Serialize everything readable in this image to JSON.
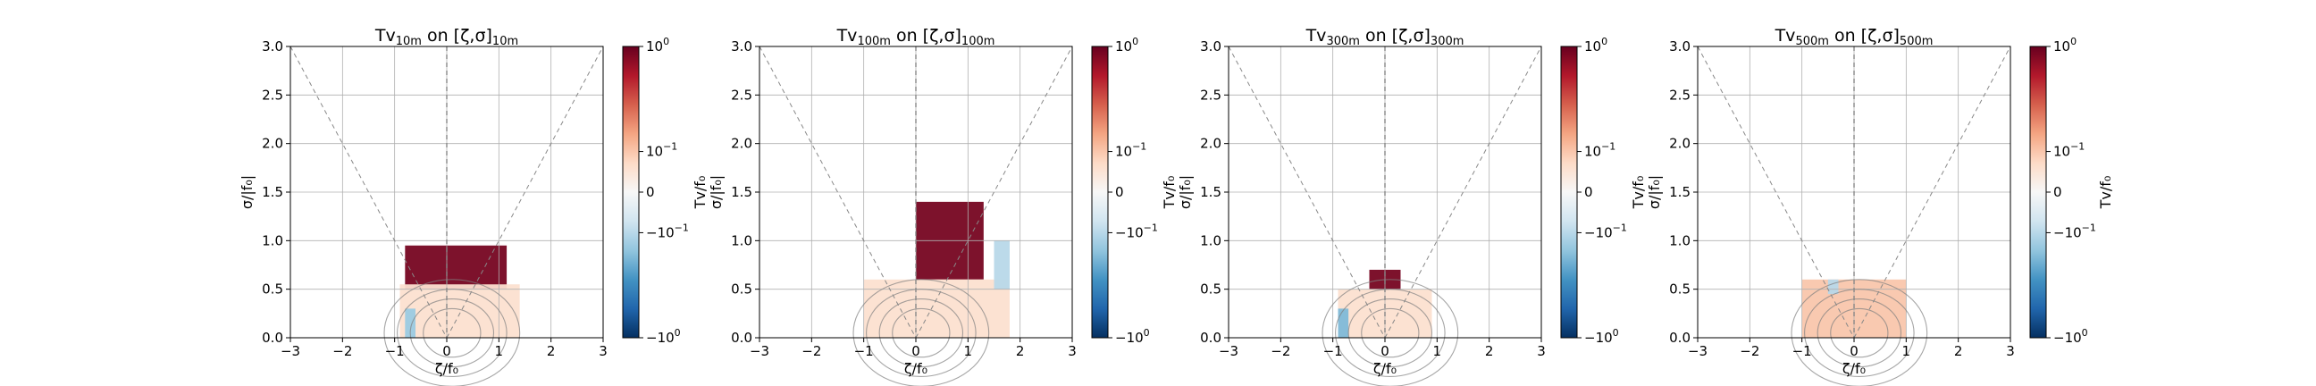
{
  "figure": {
    "panels": [
      {
        "title_main": "Tv",
        "title_sub": "10m",
        "title_mid": " on [ζ,σ]",
        "title_sub2": "10m",
        "xlabel": "ζ/f₀",
        "ylabel_lines": [
          "σ/|f₀|"
        ]
      },
      {
        "title_main": "Tv",
        "title_sub": "100m",
        "title_mid": " on [ζ,σ]",
        "title_sub2": "100m",
        "xlabel": "ζ/f₀",
        "ylabel_lines": [
          "Tv/f₀",
          "σ/|f₀|"
        ]
      },
      {
        "title_main": "Tv",
        "title_sub": "300m",
        "title_mid": " on [ζ,σ]",
        "title_sub2": "300m",
        "xlabel": "ζ/f₀",
        "ylabel_lines": [
          "Tv/f₀",
          "σ/|f₀|"
        ]
      },
      {
        "title_main": "Tv",
        "title_sub": "500m",
        "title_mid": " on [ζ,σ]",
        "title_sub2": "500m",
        "xlabel": "ζ/f₀",
        "ylabel_lines": [
          "Tv/f₀",
          "σ/|f₀|"
        ]
      }
    ],
    "colorbar": {
      "ticks": [
        {
          "base": "10",
          "exp": "0",
          "sign": "",
          "value": 1
        },
        {
          "base": "10",
          "exp": "−1",
          "sign": "",
          "value": 0.1
        },
        {
          "base": "0",
          "exp": "",
          "sign": "",
          "value": 0
        },
        {
          "base": "10",
          "exp": "−1",
          "sign": "−",
          "value": -0.1
        },
        {
          "base": "10",
          "exp": "0",
          "sign": "−",
          "value": -1
        }
      ],
      "last_label": "Tv/f₀",
      "colors": [
        "#053061",
        "#2166ac",
        "#4393c3",
        "#92c5de",
        "#d1e5f0",
        "#f7f7f7",
        "#fddbc7",
        "#f4a582",
        "#d6604d",
        "#b2182b",
        "#67001f"
      ]
    }
  },
  "chart_data": [
    {
      "type": "heatmap",
      "title": "Tv10m on [ζ,σ]10m",
      "xlabel": "ζ/f₀",
      "ylabel": "σ/|f₀|",
      "xlim": [
        -3,
        3
      ],
      "ylim": [
        0,
        3
      ],
      "xticks": [
        "−3",
        "−2",
        "−1",
        "0",
        "1",
        "2",
        "3"
      ],
      "yticks": [
        "0.0",
        "0.5",
        "1.0",
        "1.5",
        "2.0",
        "2.5",
        "3.0"
      ],
      "grid": true,
      "colorscale": "symlog RdBu_r",
      "clim": [
        -1,
        1
      ],
      "reference_lines": [
        "σ = |ζ|",
        "ζ = 0"
      ],
      "regions": [
        {
          "zeta": [
            -0.8,
            1.15
          ],
          "sigma": [
            0.5,
            0.95
          ],
          "value": 0.9
        },
        {
          "zeta": [
            -0.9,
            1.4
          ],
          "sigma": [
            0.0,
            0.55
          ],
          "value": 0.05
        },
        {
          "zeta": [
            -0.8,
            -0.6
          ],
          "sigma": [
            0.0,
            0.3
          ],
          "value": -0.15
        }
      ]
    },
    {
      "type": "heatmap",
      "title": "Tv100m on [ζ,σ]100m",
      "xlabel": "ζ/f₀",
      "ylabel": "Tv/f₀ σ/|f₀|",
      "xlim": [
        -3,
        3
      ],
      "ylim": [
        0,
        3
      ],
      "xticks": [
        "−3",
        "−2",
        "−1",
        "0",
        "1",
        "2",
        "3"
      ],
      "yticks": [
        "0.0",
        "0.5",
        "1.0",
        "1.5",
        "2.0",
        "2.5",
        "3.0"
      ],
      "grid": true,
      "colorscale": "symlog RdBu_r",
      "clim": [
        -1,
        1
      ],
      "reference_lines": [
        "σ = |ζ|",
        "ζ = 0"
      ],
      "regions": [
        {
          "zeta": [
            0.0,
            1.3
          ],
          "sigma": [
            0.6,
            1.4
          ],
          "value": 0.9
        },
        {
          "zeta": [
            -1.0,
            1.8
          ],
          "sigma": [
            0.0,
            0.6
          ],
          "value": 0.05
        },
        {
          "zeta": [
            1.5,
            1.8
          ],
          "sigma": [
            0.5,
            1.0
          ],
          "value": -0.1
        }
      ]
    },
    {
      "type": "heatmap",
      "title": "Tv300m on [ζ,σ]300m",
      "xlabel": "ζ/f₀",
      "ylabel": "Tv/f₀ σ/|f₀|",
      "xlim": [
        -3,
        3
      ],
      "ylim": [
        0,
        3
      ],
      "xticks": [
        "−3",
        "−2",
        "−1",
        "0",
        "1",
        "2",
        "3"
      ],
      "yticks": [
        "0.0",
        "0.5",
        "1.0",
        "1.5",
        "2.0",
        "2.5",
        "3.0"
      ],
      "grid": true,
      "colorscale": "symlog RdBu_r",
      "clim": [
        -1,
        1
      ],
      "reference_lines": [
        "σ = |ζ|",
        "ζ = 0"
      ],
      "regions": [
        {
          "zeta": [
            -0.3,
            0.3
          ],
          "sigma": [
            0.5,
            0.7
          ],
          "value": 0.9
        },
        {
          "zeta": [
            -0.9,
            0.9
          ],
          "sigma": [
            0.0,
            0.5
          ],
          "value": 0.05
        },
        {
          "zeta": [
            -0.9,
            -0.7
          ],
          "sigma": [
            0.0,
            0.3
          ],
          "value": -0.2
        }
      ]
    },
    {
      "type": "heatmap",
      "title": "Tv500m on [ζ,σ]500m",
      "xlabel": "ζ/f₀",
      "ylabel": "Tv/f₀ σ/|f₀|",
      "xlim": [
        -3,
        3
      ],
      "ylim": [
        0,
        3
      ],
      "xticks": [
        "−3",
        "−2",
        "−1",
        "0",
        "1",
        "2",
        "3"
      ],
      "yticks": [
        "0.0",
        "0.5",
        "1.0",
        "1.5",
        "2.0",
        "2.5",
        "3.0"
      ],
      "grid": true,
      "colorscale": "symlog RdBu_r",
      "clim": [
        -1,
        1
      ],
      "reference_lines": [
        "σ = |ζ|",
        "ζ = 0"
      ],
      "regions": [
        {
          "zeta": [
            -1.0,
            1.0
          ],
          "sigma": [
            0.0,
            0.6
          ],
          "value": 0.1
        },
        {
          "zeta": [
            -0.5,
            -0.3
          ],
          "sigma": [
            0.45,
            0.6
          ],
          "value": -0.1
        }
      ]
    }
  ]
}
